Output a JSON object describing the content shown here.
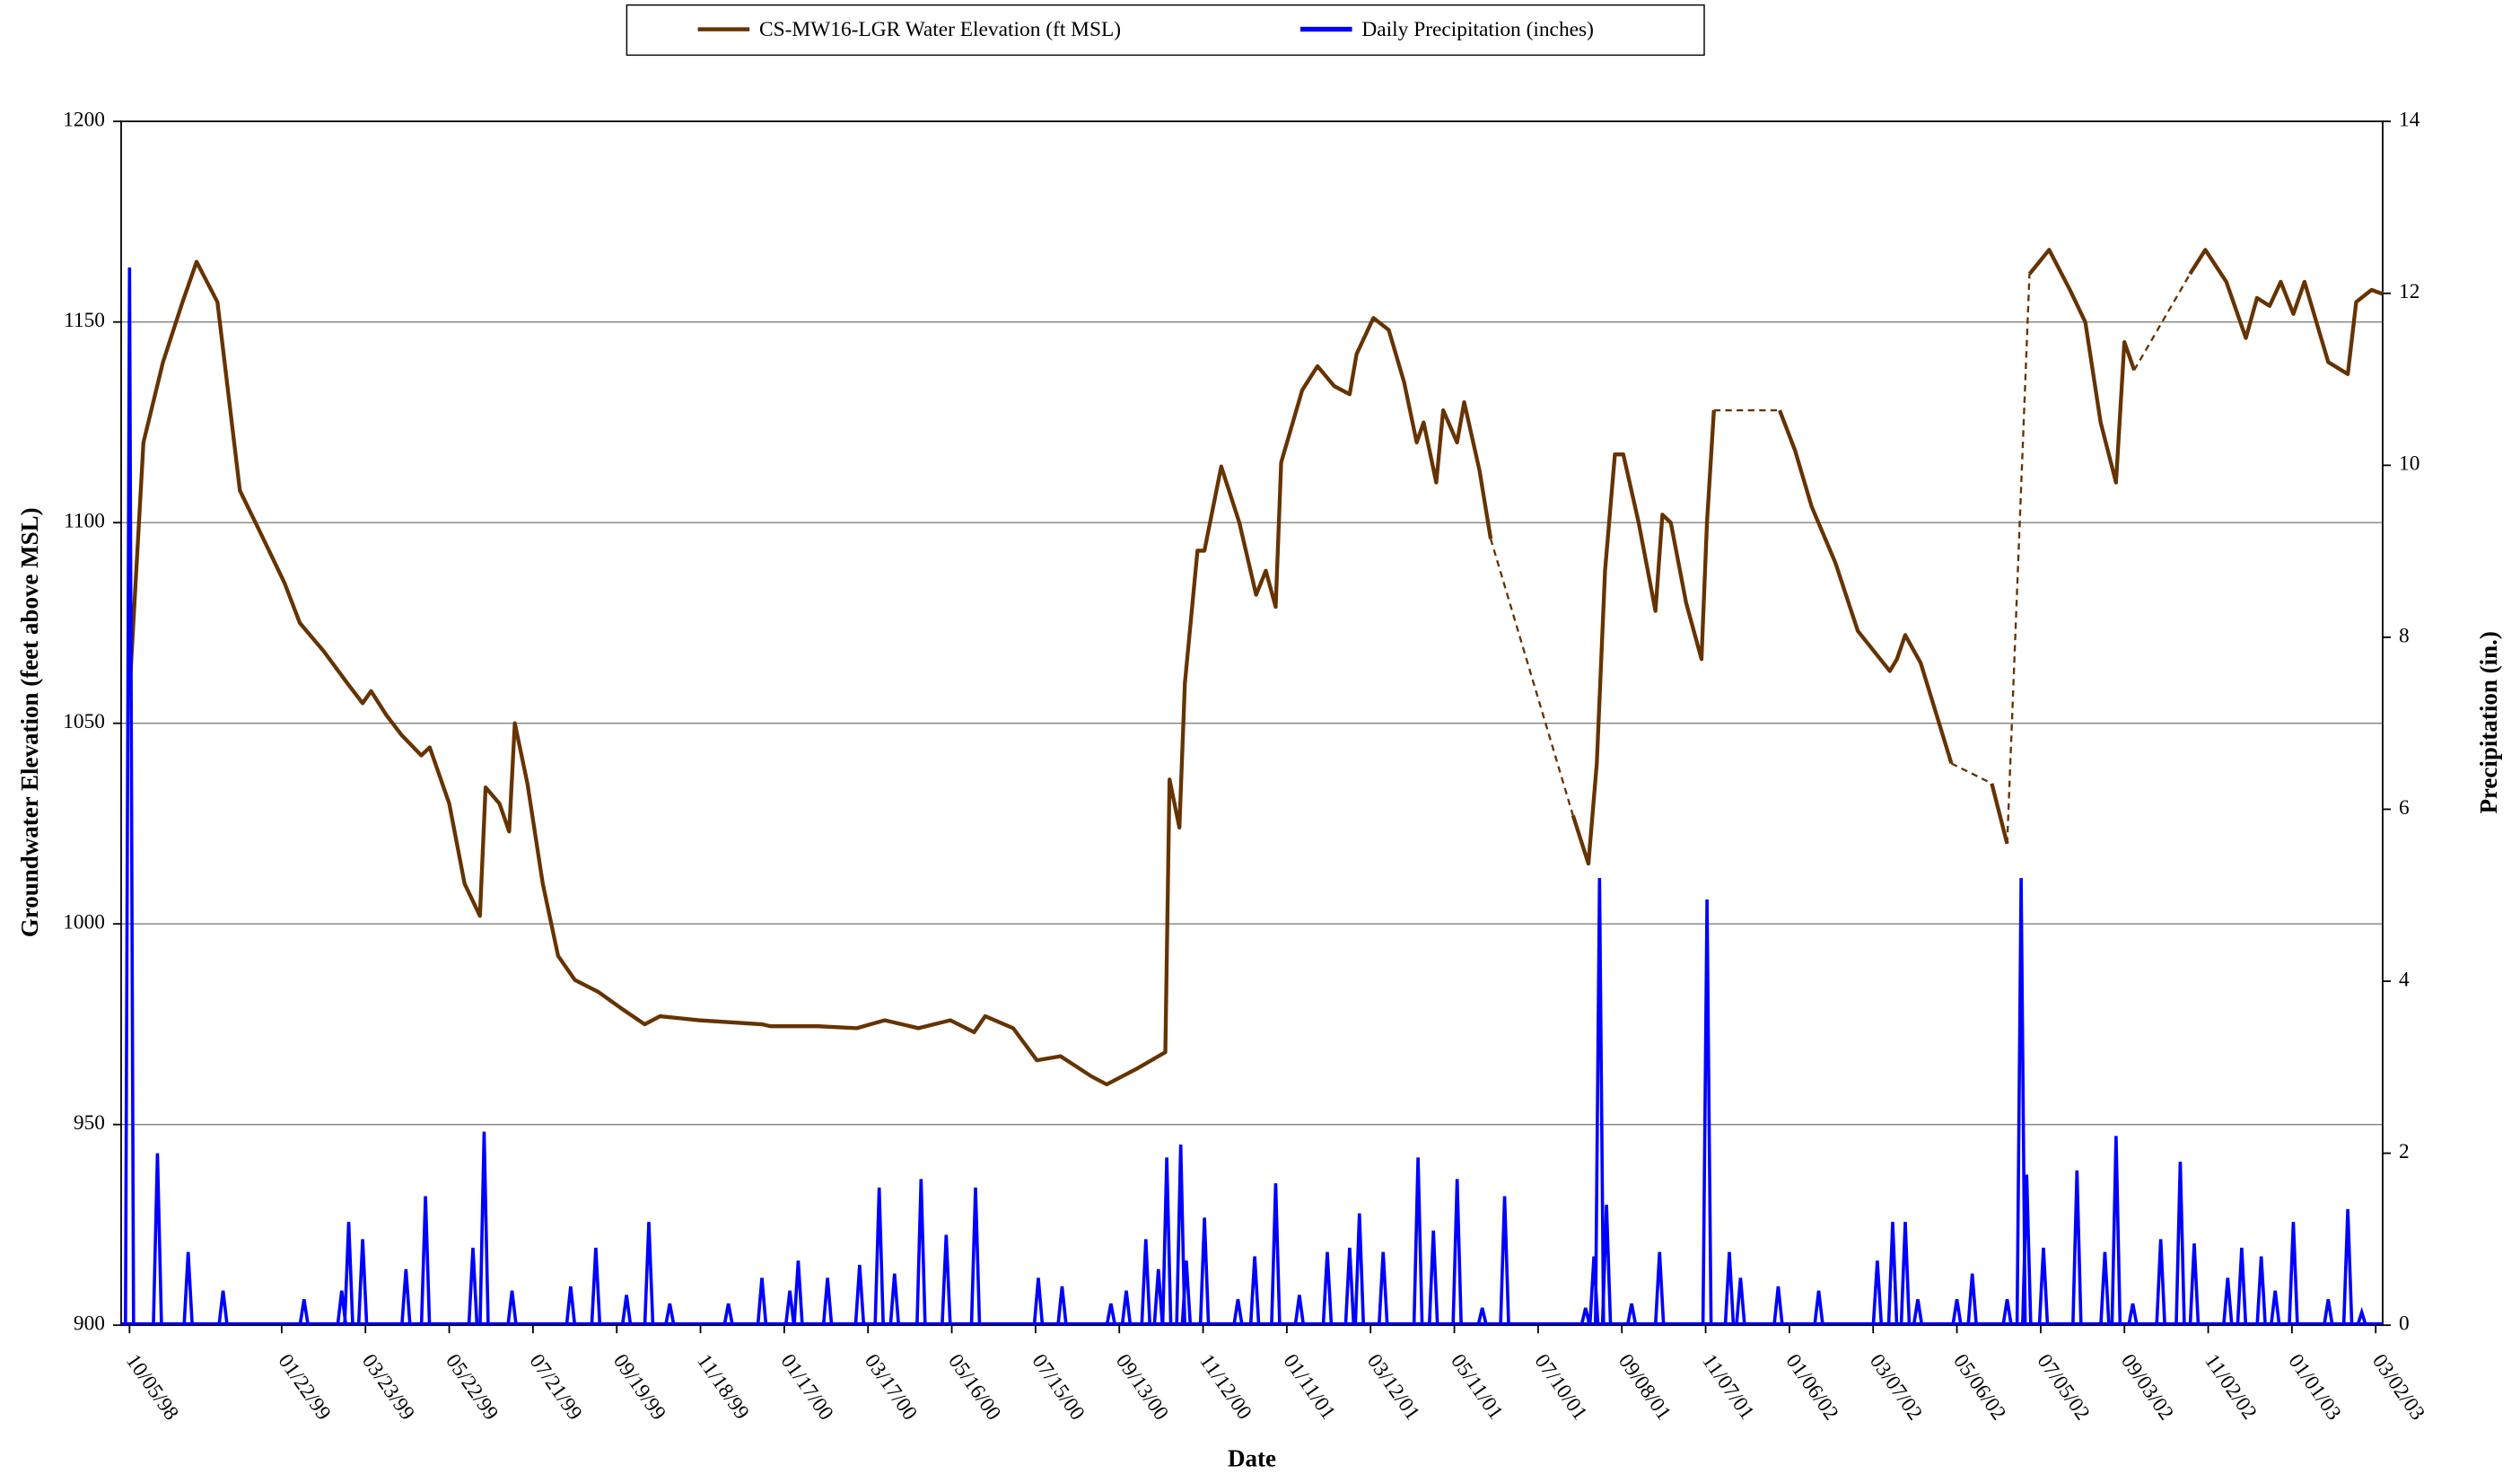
{
  "chart_data": {
    "type": "line",
    "legend": "top",
    "grid": true,
    "x_label": "Date",
    "y_label": "Groundwater Elevation (feet above MSL)",
    "y2_label": "Precipitation (in.)",
    "xlim": [
      "09/29/98",
      "03/07/03"
    ],
    "xticks": [
      "10/05/98",
      "01/22/99",
      "03/23/99",
      "05/22/99",
      "07/21/99",
      "09/19/99",
      "11/18/99",
      "01/17/00",
      "03/17/00",
      "05/16/00",
      "07/15/00",
      "09/13/00",
      "11/12/00",
      "01/11/01",
      "03/12/01",
      "05/11/01",
      "07/10/01",
      "09/08/01",
      "11/07/01",
      "01/06/02",
      "03/07/02",
      "05/06/02",
      "07/05/02",
      "09/03/02",
      "11/02/02",
      "01/01/03",
      "03/02/03"
    ],
    "ylim": [
      900,
      1200
    ],
    "yticks": [
      900,
      950,
      1000,
      1050,
      1100,
      1150,
      1200
    ],
    "y2lim": [
      0,
      14
    ],
    "y2ticks": [
      0,
      2,
      4,
      6,
      8,
      10,
      12,
      14
    ],
    "gaps": "dashed",
    "series": [
      {
        "name": "CS-MW16-LGR Water Elevation (ft MSL)",
        "type": "line",
        "color": "#663300",
        "x": [
          "10/05/98",
          "10/15/98",
          "10/29/98",
          "11/12/98",
          "11/22/98",
          "12/07/98",
          "12/23/98",
          "01/06/99",
          "01/24/99",
          "02/04/99",
          "02/21/99",
          "03/10/99",
          "03/21/99",
          "03/27/99",
          "04/07/99",
          "04/18/99",
          "05/02/99",
          "05/08/99",
          "05/22/99",
          "06/02/99",
          "06/13/99",
          "06/17/99",
          "06/27/99",
          "07/04/99",
          "07/08/99",
          "07/17/99",
          "07/28/99",
          "08/08/99",
          "08/20/99",
          "09/06/99",
          "09/22/99",
          "10/09/99",
          "10/20/99",
          "11/17/99",
          "01/01/00",
          "01/07/00",
          "02/10/00",
          "03/09/00",
          "03/29/00",
          "04/22/00",
          "05/15/00",
          "06/01/00",
          "06/09/00",
          "06/29/00",
          "07/16/00",
          "08/02/00",
          "08/24/00",
          "09/04/00",
          "09/26/00",
          "10/16/00",
          "10/19/00",
          "10/26/00",
          "10/30/00",
          "11/08/00",
          "11/13/00",
          "11/25/00",
          "12/08/00",
          "12/20/00",
          "12/27/00",
          "01/03/01",
          "01/07/01",
          "01/22/01",
          "02/02/01",
          "02/14/01",
          "02/25/01",
          "03/02/01",
          "03/14/01",
          "03/25/01",
          "04/05/01",
          "04/14/01",
          "04/19/01",
          "04/28/01",
          "05/03/01",
          "05/13/01",
          "05/18/01",
          "05/29/01",
          "06/06/01",
          "07/05/01",
          "08/04/01",
          "08/15/01",
          "08/21/01",
          "08/27/01",
          "09/03/01",
          "09/09/01",
          "09/20/01",
          "10/02/01",
          "10/07/01",
          "10/13/01",
          "10/24/01",
          "11/04/01",
          "11/08/01",
          "11/13/01",
          "12/06/01",
          "12/30/01",
          "01/10/02",
          "01/22/02",
          "02/08/02",
          "02/24/02",
          "03/19/02",
          "03/24/02",
          "03/30/02",
          "04/10/02",
          "05/02/02",
          "05/16/02",
          "05/31/02",
          "06/11/02",
          "06/19/02",
          "06/27/02",
          "07/11/02",
          "07/26/02",
          "08/06/02",
          "08/17/02",
          "08/28/02",
          "09/03/02",
          "09/10/02",
          "09/25/02",
          "10/20/02",
          "10/31/02",
          "11/15/02",
          "11/29/02",
          "12/07/02",
          "12/16/02",
          "12/24/02",
          "01/02/03",
          "01/10/03",
          "01/27/03",
          "02/10/03",
          "02/16/03",
          "02/27/03",
          "03/07/03"
        ],
        "values": [
          1058,
          1120,
          1140,
          1155,
          1165,
          1155,
          1108,
          1098,
          1085,
          1075,
          1068,
          1060,
          1055,
          1058,
          1052,
          1047,
          1042,
          1044,
          1030,
          1010,
          1002,
          1034,
          1030,
          1023,
          1050,
          1035,
          1010,
          992,
          986,
          983,
          979,
          975,
          977,
          976,
          975,
          974.5,
          974.5,
          974,
          976,
          974,
          976,
          973,
          977,
          974,
          966,
          967,
          962,
          960,
          964,
          968,
          1036,
          1024,
          1060,
          1093,
          1093,
          1114,
          1100,
          1082,
          1088,
          1079,
          1115,
          1133,
          1139,
          1134,
          1132,
          1142,
          1151,
          1148,
          1135,
          1120,
          1125,
          1110,
          1128,
          1120,
          1130,
          1113,
          1096,
          null,
          1027,
          1015,
          1040,
          1088,
          1117,
          1117,
          1100,
          1078,
          1102,
          1100,
          1080,
          1066,
          1100,
          1128,
          null,
          1128,
          1118,
          1104,
          1090,
          1073,
          1063,
          1066,
          1072,
          1065,
          1040,
          null,
          1035,
          1020,
          null,
          1162,
          1168,
          1158,
          1150,
          1125,
          1110,
          1145,
          1138,
          null,
          1162,
          1168,
          1160,
          1146,
          1156,
          1154,
          1160,
          1152,
          1160,
          1140,
          1137,
          1155,
          1158,
          1157
        ]
      },
      {
        "name": "Daily Precipitation (inches)",
        "type": "bar",
        "color": "#0000ff",
        "axis": "y2",
        "x": [
          "10/05/98",
          "10/25/98",
          "11/16/98",
          "12/11/98",
          "02/07/99",
          "03/06/99",
          "03/11/99",
          "03/21/99",
          "04/21/99",
          "05/05/99",
          "06/08/99",
          "06/16/99",
          "07/06/99",
          "08/17/99",
          "09/04/99",
          "09/26/99",
          "10/12/99",
          "10/27/99",
          "12/08/99",
          "01/01/00",
          "01/21/00",
          "01/27/00",
          "02/17/00",
          "03/11/00",
          "03/25/00",
          "04/05/00",
          "04/24/00",
          "05/12/00",
          "06/02/00",
          "07/17/00",
          "08/03/00",
          "09/07/00",
          "09/18/00",
          "10/02/00",
          "10/11/00",
          "10/17/00",
          "10/27/00",
          "10/31/00",
          "11/13/00",
          "12/07/00",
          "12/19/00",
          "01/03/01",
          "01/20/01",
          "02/09/01",
          "02/25/01",
          "03/04/01",
          "03/21/01",
          "04/15/01",
          "04/26/01",
          "05/13/01",
          "05/31/01",
          "06/16/01",
          "08/13/01",
          "08/19/01",
          "08/23/01",
          "08/28/01",
          "09/15/01",
          "10/05/01",
          "11/08/01",
          "11/24/01",
          "12/02/01",
          "12/29/01",
          "01/27/02",
          "03/10/02",
          "03/21/02",
          "03/30/02",
          "04/08/02",
          "05/06/02",
          "05/17/02",
          "06/11/02",
          "06/21/02",
          "06/25/02",
          "07/07/02",
          "07/31/02",
          "08/20/02",
          "08/28/02",
          "09/09/02",
          "09/29/02",
          "10/13/02",
          "10/23/02",
          "11/16/02",
          "11/26/02",
          "12/10/02",
          "12/20/02",
          "01/02/03",
          "01/27/03",
          "02/10/03",
          "02/20/03"
        ],
        "values": [
          12.3,
          2.0,
          0.85,
          0.4,
          0.3,
          0.4,
          1.2,
          1.0,
          0.65,
          1.5,
          0.9,
          2.25,
          0.4,
          0.45,
          0.9,
          0.35,
          1.2,
          0.25,
          0.25,
          0.55,
          0.4,
          0.75,
          0.55,
          0.7,
          1.6,
          0.6,
          1.7,
          1.05,
          1.6,
          0.55,
          0.45,
          0.25,
          0.4,
          1.0,
          0.65,
          1.95,
          2.1,
          0.75,
          1.25,
          0.3,
          0.8,
          1.65,
          0.35,
          0.85,
          0.9,
          1.3,
          0.85,
          1.95,
          1.1,
          1.7,
          0.2,
          1.5,
          0.2,
          0.8,
          5.2,
          1.4,
          0.25,
          0.85,
          4.95,
          0.85,
          0.55,
          0.45,
          0.4,
          0.75,
          1.2,
          1.2,
          0.3,
          0.3,
          0.6,
          0.3,
          5.2,
          1.75,
          0.9,
          1.8,
          0.85,
          2.2,
          0.25,
          1.0,
          1.9,
          0.95,
          0.55,
          0.9,
          0.8,
          0.4,
          1.2,
          0.3,
          1.35,
          0.15
        ]
      }
    ]
  }
}
